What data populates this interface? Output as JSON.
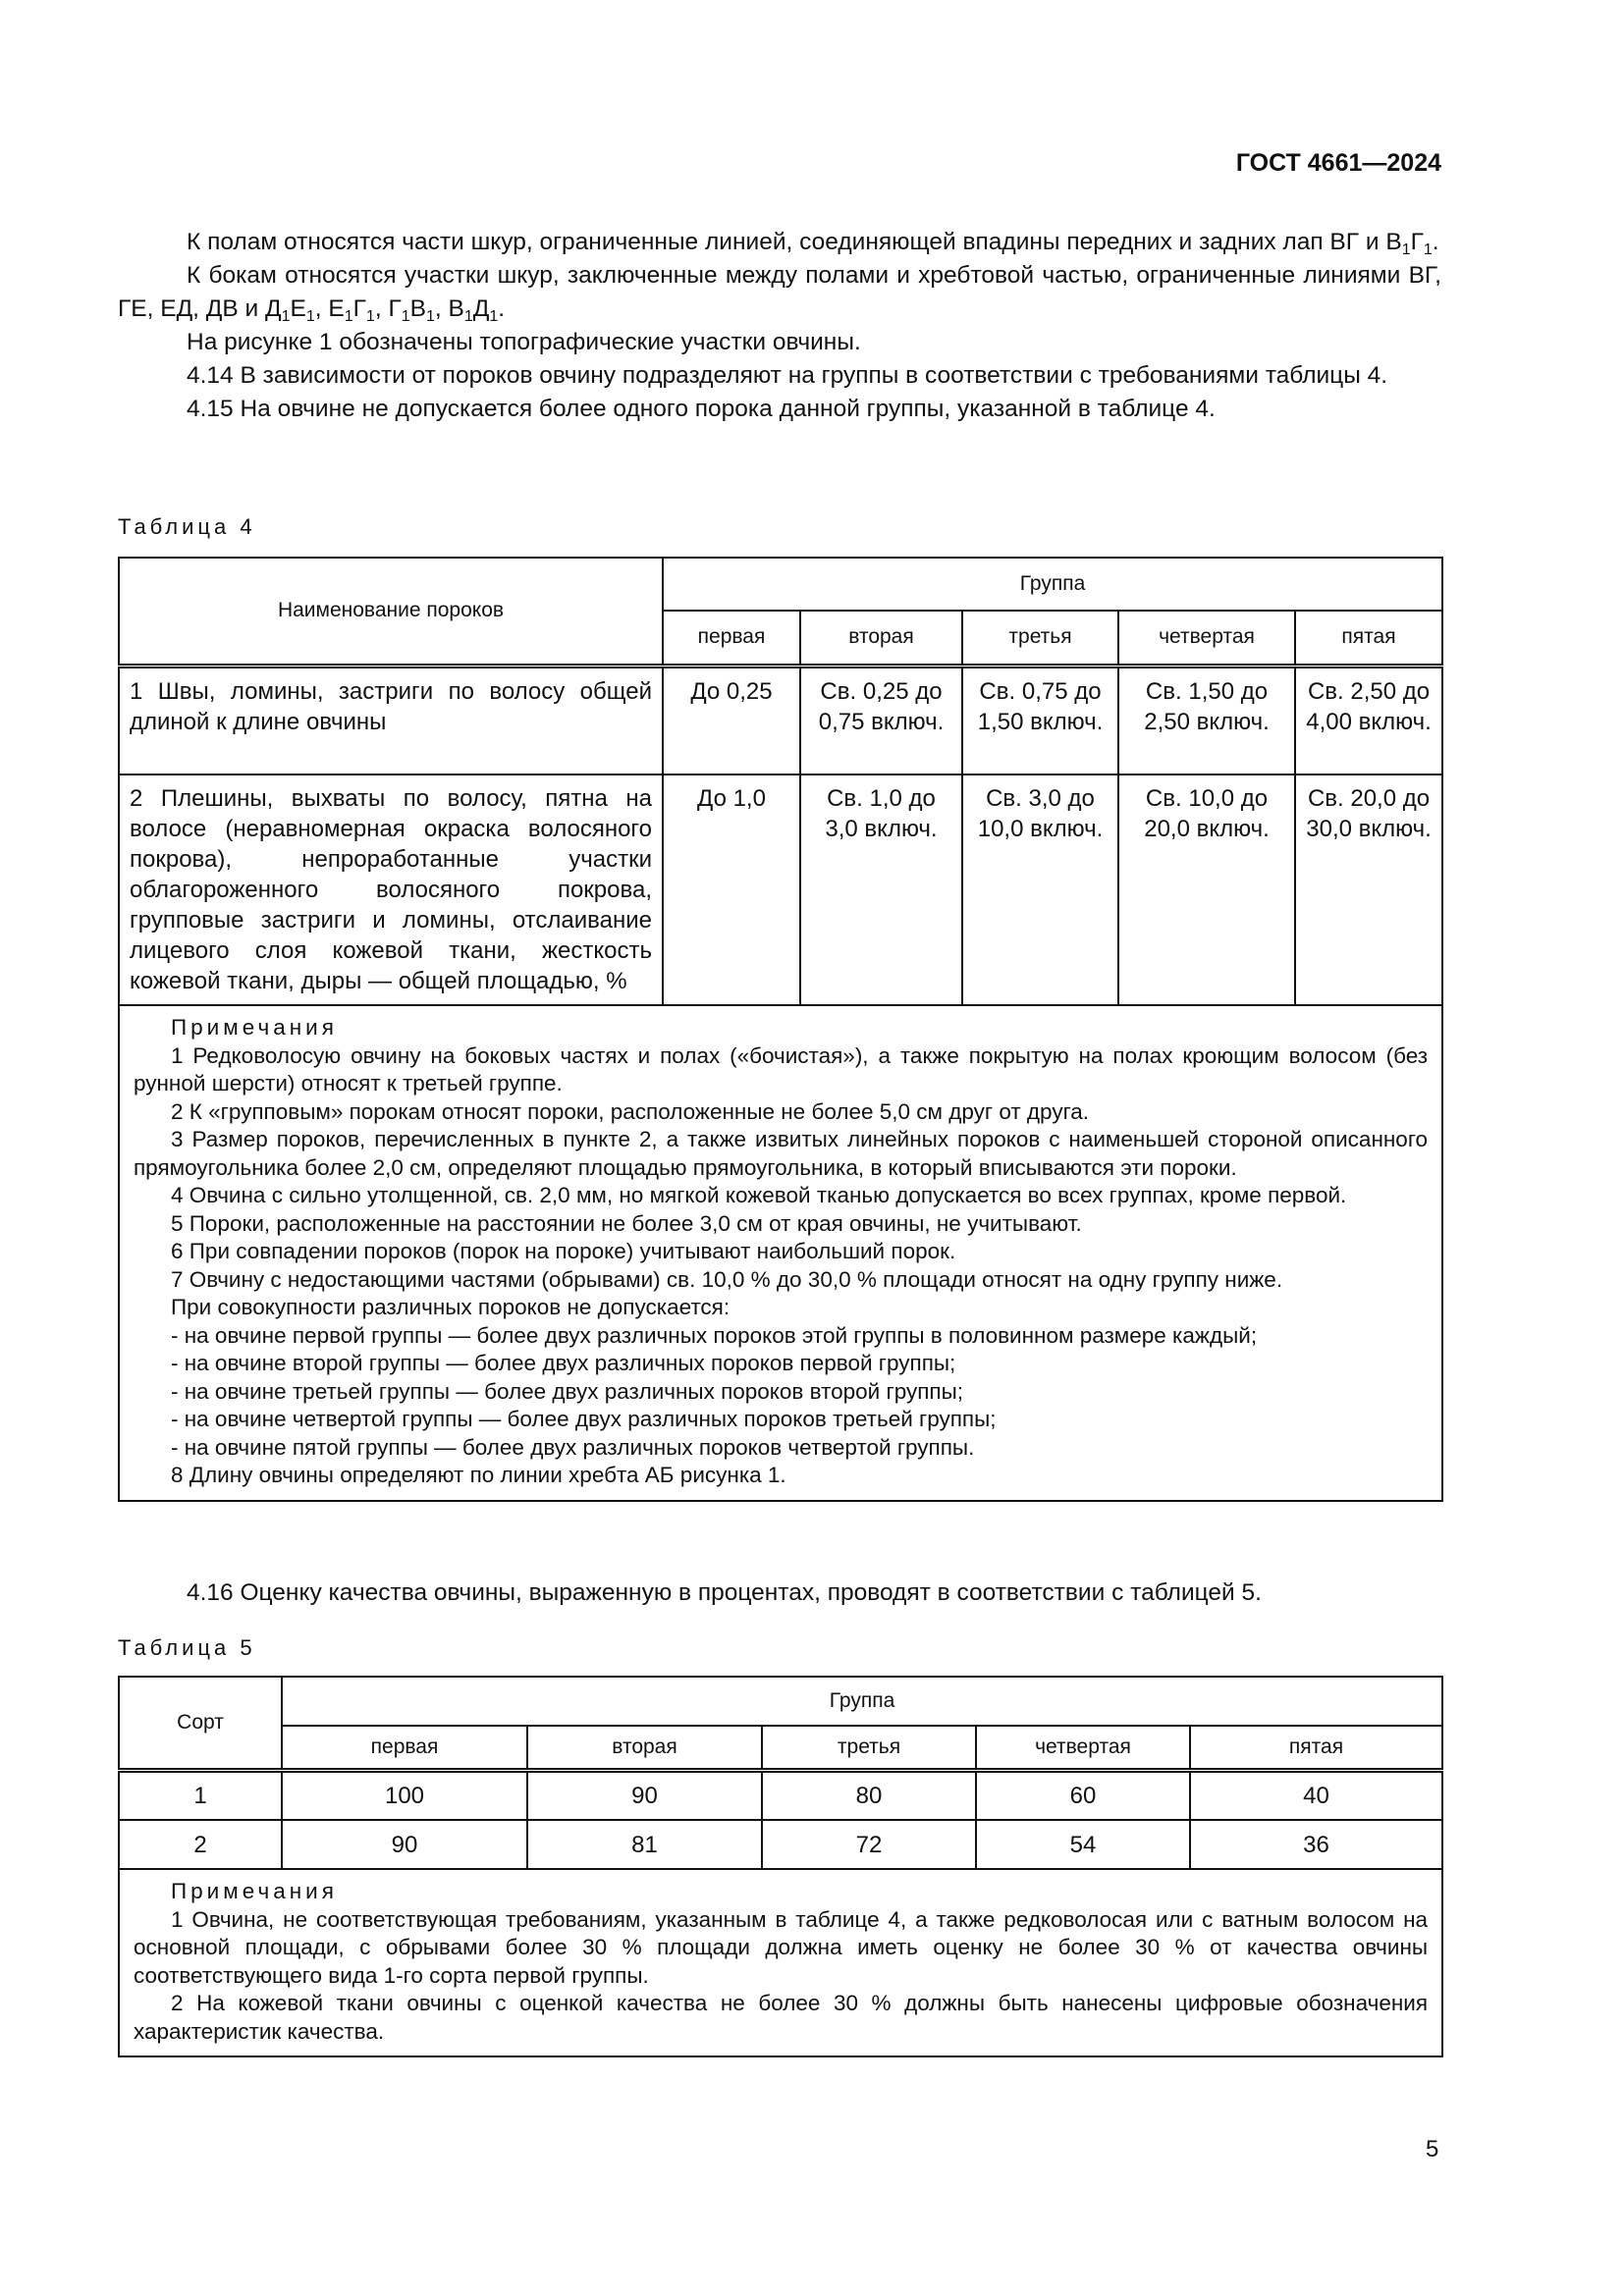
{
  "header": {
    "doc_id": "ГОСТ 4661—2024"
  },
  "paragraphs": [
    {
      "segments": [
        {
          "text": "К полам относятся части шкур, ограниченные линией, соединяющей впадины передних и задних лап ВГ и В"
        },
        {
          "sub": "1"
        },
        {
          "text": "Г"
        },
        {
          "sub": "1"
        },
        {
          "text": "."
        }
      ]
    },
    {
      "segments": [
        {
          "text": "К бокам относятся участки шкур, заключенные между полами и хребтовой частью, ограниченные линиями ВГ, ГЕ, ЕД, ДВ и Д"
        },
        {
          "sub": "1"
        },
        {
          "text": "Е"
        },
        {
          "sub": "1"
        },
        {
          "text": ", Е"
        },
        {
          "sub": "1"
        },
        {
          "text": "Г"
        },
        {
          "sub": "1"
        },
        {
          "text": ", Г"
        },
        {
          "sub": "1"
        },
        {
          "text": "В"
        },
        {
          "sub": "1"
        },
        {
          "text": ", В"
        },
        {
          "sub": "1"
        },
        {
          "text": "Д"
        },
        {
          "sub": "1"
        },
        {
          "text": "."
        }
      ]
    },
    {
      "segments": [
        {
          "text": "На рисунке 1 обозначены топографические участки овчины."
        }
      ]
    },
    {
      "segments": [
        {
          "text": "4.14  В зависимости от пороков овчину подразделяют на группы в соответствии с требованиями таблицы 4."
        }
      ]
    },
    {
      "segments": [
        {
          "text": "4.15  На овчине не допускается более одного порока данной группы, указанной в таблице 4."
        }
      ]
    }
  ],
  "table4": {
    "label": "Таблица 4",
    "col_name": "Наименование пороков",
    "group_header": "Группа",
    "groups": [
      "первая",
      "вторая",
      "третья",
      "четвертая",
      "пятая"
    ],
    "rows": [
      {
        "name": "1 Швы, ломины, застриги по волосу общей длиной к длине овчины",
        "values": [
          "До 0,25",
          "Св. 0,25 до 0,75 включ.",
          "Св. 0,75 до 1,50 включ.",
          "Св. 1,50 до 2,50 включ.",
          "Св. 2,50 до 4,00 включ."
        ]
      },
      {
        "name": "2 Плешины, выхваты по волосу, пятна на волосе (неравномерная окраска волосяного покрова), непроработанные участки облагороженного волосяного покрова, групповые застриги и ломины, отслаивание лицевого слоя кожевой ткани, жесткость кожевой ткани, дыры — общей площадью, %",
        "values": [
          "До 1,0",
          "Св. 1,0 до 3,0 включ.",
          "Св. 3,0 до 10,0 включ.",
          "Св. 10,0 до 20,0 включ.",
          "Св. 20,0 до 30,0 включ."
        ]
      }
    ],
    "notes_title": "Примечания",
    "notes": [
      "1 Редковолосую овчину на боковых частях и полах («бочистая»), а также покрытую на полах кроющим волосом (без рунной шерсти) относят к третьей группе.",
      "2 К «групповым» порокам относят пороки, расположенные не более 5,0 см друг от друга.",
      "3 Размер пороков, перечисленных в пункте 2, а также извитых линейных пороков с наименьшей стороной описанного прямоугольника более 2,0 см, определяют площадью прямоугольника, в который вписываются эти пороки.",
      "4 Овчина с сильно утолщенной, св. 2,0 мм, но мягкой кожевой тканью допускается во всех группах, кроме первой.",
      "5 Пороки, расположенные на расстоянии не более 3,0 см от края овчины, не учитывают.",
      "6 При совпадении пороков (порок на пороке) учитывают наибольший порок.",
      "7 Овчину с недостающими частями (обрывами) св. 10,0 % до 30,0 % площади относят на одну группу ниже.",
      "При совокупности различных пороков не допускается:"
    ],
    "bullets": [
      "-  на овчине первой группы — более двух различных пороков этой группы в половинном размере каждый;",
      "-  на овчине второй группы — более двух различных пороков первой группы;",
      "-  на овчине третьей группы — более двух различных пороков второй группы;",
      "-  на овчине четвертой группы — более двух различных пороков третьей группы;",
      "-  на овчине пятой группы — более двух различных пороков четвертой группы."
    ],
    "last_note": "8 Длину овчины определяют по линии хребта АБ рисунка 1."
  },
  "para_416": "4.16  Оценку качества овчины, выраженную в процентах, проводят в соответствии с таблицей 5.",
  "table5": {
    "label": "Таблица 5",
    "col_sort": "Сорт",
    "group_header": "Группа",
    "groups": [
      "первая",
      "вторая",
      "третья",
      "четвертая",
      "пятая"
    ],
    "rows": [
      {
        "sort": "1",
        "values": [
          "100",
          "90",
          "80",
          "60",
          "40"
        ]
      },
      {
        "sort": "2",
        "values": [
          "90",
          "81",
          "72",
          "54",
          "36"
        ]
      }
    ],
    "notes_title": "Примечания",
    "notes": [
      "1  Овчина, не соответствующая требованиям, указанным в таблице 4, а также редковолосая или с ватным волосом на основной площади, с обрывами более 30 % площади должна иметь оценку не более 30 % от качества овчины соответствующего вида 1-го сорта первой группы.",
      "2  На кожевой ткани овчины с оценкой качества не более 30 % должны быть нанесены цифровые обозначения характеристик качества."
    ]
  },
  "page_number": "5"
}
